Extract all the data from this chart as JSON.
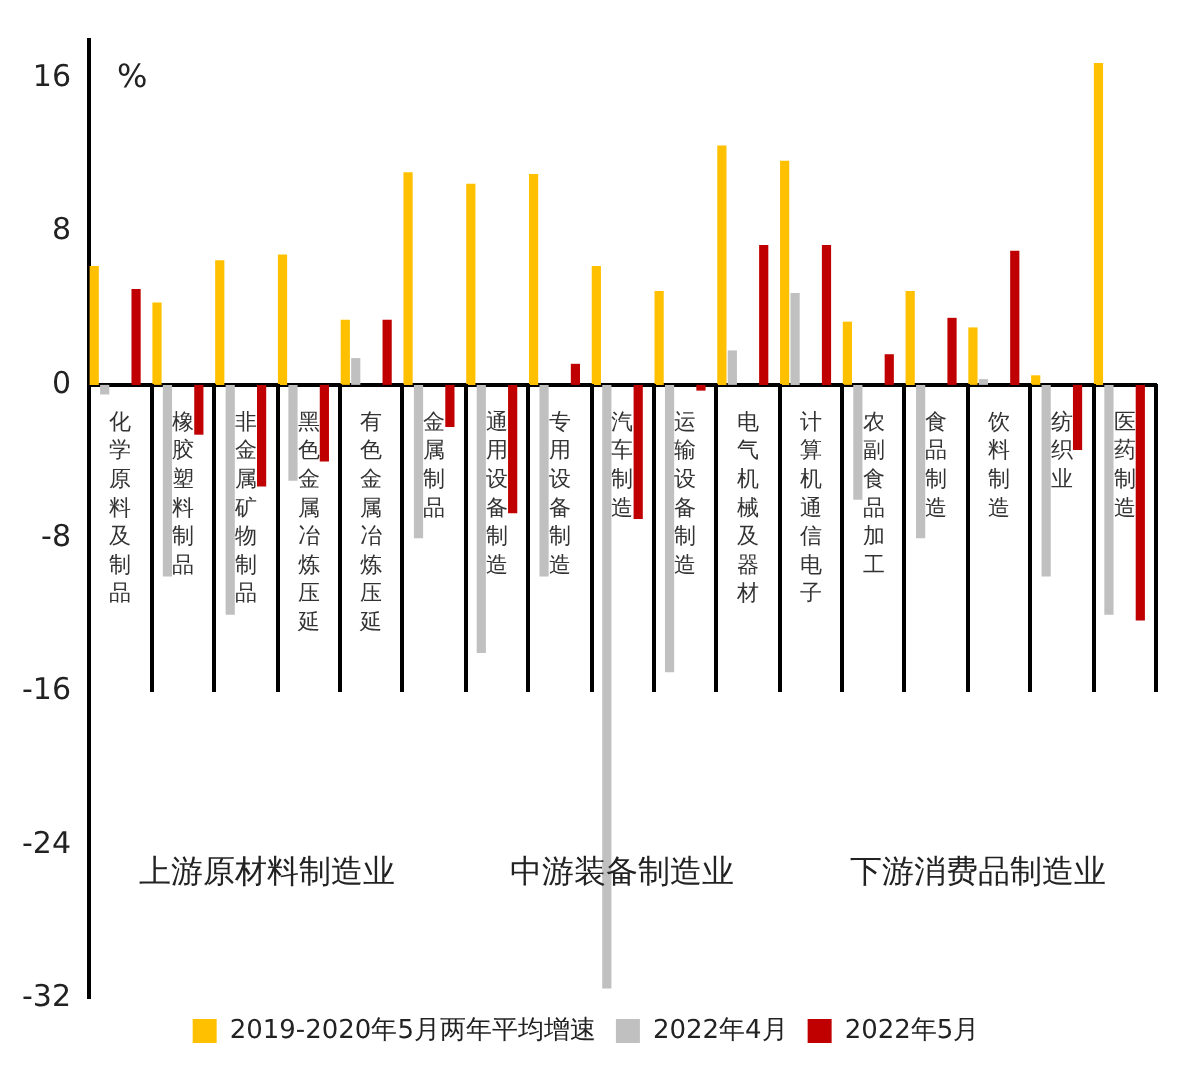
{
  "chart_data": {
    "type": "bar",
    "ylabel": "%",
    "categories": [
      "化学原料及制品",
      "橡胶塑料制品",
      "非金属矿物制品",
      "黑色金属冶炼压延",
      "有色金属冶炼压延",
      "金属制品",
      "通用设备制造",
      "专用设备制造",
      "汽车制造",
      "运输设备制造",
      "电气机械及器材",
      "计算机通信电子",
      "农副食品加工",
      "食品制造",
      "饮料制造",
      "纺织业",
      "医药制造"
    ],
    "series": [
      {
        "name": "2019-2020年5月两年平均增速",
        "color": "#ffc000",
        "values": [
          6.2,
          4.3,
          6.5,
          6.8,
          3.4,
          11.1,
          10.5,
          11.0,
          6.2,
          4.9,
          12.5,
          11.7,
          3.3,
          4.9,
          3.0,
          0.5,
          16.8
        ]
      },
      {
        "name": "2022年4月",
        "color": "#c0c0c0",
        "values": [
          -0.5,
          -10,
          -12,
          -5,
          1.4,
          -8,
          -14,
          -10,
          -31.5,
          -15,
          1.8,
          4.8,
          -6,
          -8,
          0.3,
          -10,
          -12
        ]
      },
      {
        "name": "2022年5月",
        "color": "#c00000",
        "values": [
          5.0,
          -2.6,
          -5.3,
          -4.0,
          3.4,
          -2.2,
          -6.7,
          1.1,
          -7.0,
          -0.3,
          7.3,
          7.3,
          1.6,
          3.5,
          7.0,
          -3.4,
          -12.3
        ]
      }
    ],
    "ylim": [
      -32,
      18
    ],
    "yticks": [
      -32,
      -24,
      -16,
      -8,
      0,
      8,
      16
    ],
    "grid": false,
    "legend": "bottom",
    "annotations": [
      "上游原材料制造业",
      "中游装备制造业",
      "下游消费品制造业"
    ]
  }
}
